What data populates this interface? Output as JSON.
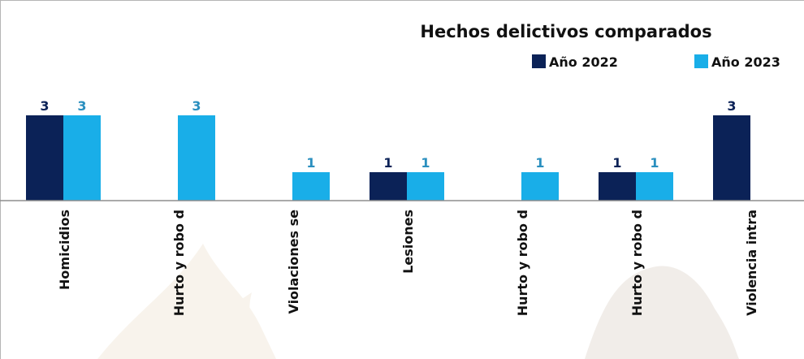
{
  "chart_data": {
    "type": "bar",
    "title": "Hechos delictivos comparados",
    "legend_position": "top-right",
    "categories": [
      "Homicidios",
      "Hurto y robo d",
      "Violaciones se",
      "Lesiones",
      "Hurto y robo d",
      "Hurto y robo d",
      "Violencia intra"
    ],
    "series": [
      {
        "name": "Año 2022",
        "color": "#0b2257",
        "label_color": "#0b2257",
        "values": [
          3,
          0,
          0,
          1,
          0,
          1,
          3
        ]
      },
      {
        "name": "Año 2023",
        "color": "#19aee8",
        "label_color": "#2a8fbf",
        "values": [
          3,
          3,
          1,
          1,
          1,
          1,
          0
        ]
      }
    ],
    "ylim": [
      0,
      3
    ],
    "grid": false,
    "xlabel": "",
    "ylabel": ""
  }
}
